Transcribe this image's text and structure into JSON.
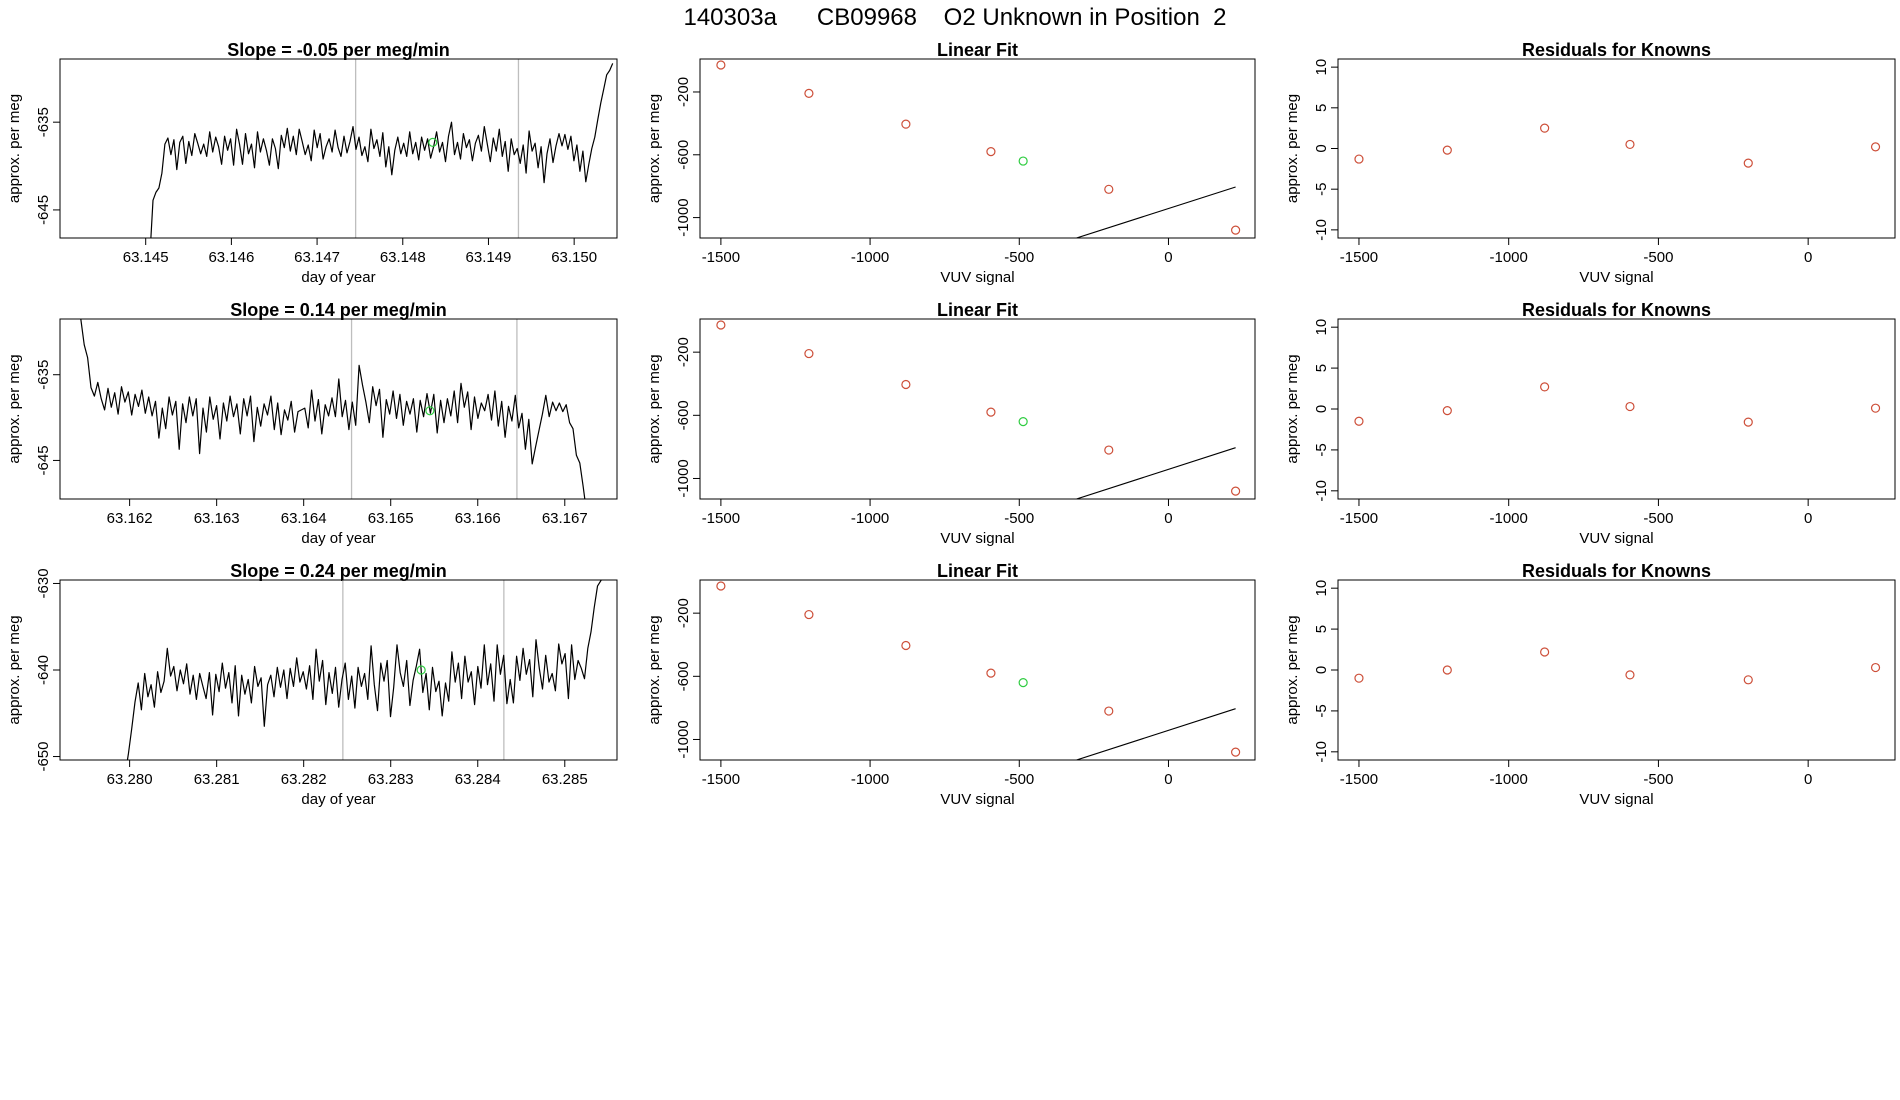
{
  "super_title": "140303a      CB09968    O2 Unknown in Position  2",
  "colors": {
    "trace": "#000000",
    "known": "#cd4f39",
    "unknown": "#2ecc40",
    "vline": "#bebebe",
    "fit": "#000000"
  },
  "chart_data": [
    {
      "type": "line",
      "row": 0,
      "title": "Slope =  -0.05  per meg/min",
      "xlabel": "day of year",
      "ylabel": "approx. per meg",
      "xlim": [
        63.144,
        63.1505
      ],
      "ylim": [
        -648.2,
        -627.8
      ],
      "xticks": [
        63.145,
        63.146,
        63.147,
        63.148,
        63.149,
        63.15
      ],
      "xtick_labels": [
        "63.145",
        "63.146",
        "63.147",
        "63.148",
        "63.149",
        "63.150"
      ],
      "yticks": [
        -645,
        -635
      ],
      "ytick_labels": [
        "-645",
        "-635"
      ],
      "vlines": [
        63.14745,
        63.14935
      ],
      "series_start": 63.14505,
      "series_end": 63.15045,
      "trace": [
        -650,
        -643.9,
        -643,
        -642.5,
        -640.8,
        -637.5,
        -636.8,
        -638.7,
        -637,
        -640.4,
        -637.3,
        -636.6,
        -639.7,
        -637.2,
        -638.8,
        -636.3,
        -637.4,
        -638.6,
        -637.5,
        -638.9,
        -636.1,
        -638.4,
        -636.7,
        -637.8,
        -639.8,
        -636.6,
        -638.2,
        -636.9,
        -639.9,
        -635.8,
        -637.5,
        -639.8,
        -636.3,
        -638.6,
        -637.5,
        -640.2,
        -636.1,
        -638.4,
        -636.9,
        -638.2,
        -639.9,
        -636.9,
        -638,
        -640.3,
        -636.5,
        -637.9,
        -635.7,
        -638.3,
        -636.6,
        -638.7,
        -635.8,
        -637.2,
        -638.7,
        -637.6,
        -639.4,
        -635.9,
        -637.9,
        -636.3,
        -639.2,
        -637.8,
        -636.9,
        -638.4,
        -635.9,
        -637.9,
        -638.9,
        -636.6,
        -638.5,
        -637.2,
        -635.5,
        -638.1,
        -636.7,
        -638.8,
        -637.8,
        -639.5,
        -635.8,
        -638,
        -637,
        -638.9,
        -636.2,
        -640.1,
        -637.8,
        -641,
        -638.2,
        -636.7,
        -638.6,
        -637.4,
        -638.9,
        -636.1,
        -638.6,
        -637.3,
        -639.3,
        -636.7,
        -638.2,
        -636.9,
        -639.1,
        -637.8,
        -636.1,
        -638.4,
        -637.3,
        -639.5,
        -636.6,
        -635,
        -638.7,
        -637.3,
        -639.2,
        -636.3,
        -637.9,
        -637,
        -639.4,
        -637.4,
        -636.5,
        -638.3,
        -635.5,
        -637.5,
        -639.5,
        -636.8,
        -638.3,
        -635.8,
        -638.9,
        -637.2,
        -640.6,
        -636.9,
        -638.7,
        -638,
        -639.7,
        -637.6,
        -640.8,
        -636,
        -638.3,
        -637.4,
        -640.2,
        -637.8,
        -641.9,
        -638.6,
        -636.9,
        -639.6,
        -637.7,
        -636.3,
        -637.7,
        -636.4,
        -638.1,
        -636.6,
        -639.4,
        -637.6,
        -640.6,
        -638.3,
        -641.8,
        -639.8,
        -638,
        -636.7,
        -634.7,
        -632.8,
        -631.2,
        -629.6,
        -629.1,
        -628.3
      ],
      "unknown_point": {
        "x": 63.14835,
        "y": -637.3
      }
    },
    {
      "type": "scatter",
      "row": 0,
      "title": "Linear Fit",
      "xlabel": "VUV signal",
      "ylabel": "approx. per meg",
      "xlim": [
        -1570,
        290
      ],
      "ylim": [
        -1130,
        10
      ],
      "xticks": [
        -1500,
        -1000,
        -500,
        0
      ],
      "xtick_labels": [
        "-1500",
        "-1000",
        "-500",
        "0"
      ],
      "yticks": [
        -1000,
        -600,
        -200
      ],
      "ytick_labels": [
        "-1000",
        "-600",
        "-200"
      ],
      "fit_line": {
        "slope": 0.6095,
        "intercept": -942.3,
        "x0": -1500,
        "x1": 225
      },
      "knowns": [
        {
          "x": -1500,
          "y": -28
        },
        {
          "x": -1205,
          "y": -209
        },
        {
          "x": -880,
          "y": -405
        },
        {
          "x": -595,
          "y": -580
        },
        {
          "x": -200,
          "y": -820
        },
        {
          "x": 225,
          "y": -1080
        }
      ],
      "unknown": {
        "x": -487,
        "y": -640
      }
    },
    {
      "type": "scatter",
      "row": 0,
      "title": "Residuals for Knowns",
      "xlabel": "VUV signal",
      "ylabel": "approx. per meg",
      "xlim": [
        -1570,
        290
      ],
      "ylim": [
        -11,
        11
      ],
      "xticks": [
        -1500,
        -1000,
        -500,
        0
      ],
      "xtick_labels": [
        "-1500",
        "-1000",
        "-500",
        "0"
      ],
      "yticks": [
        -10,
        -5,
        0,
        5,
        10
      ],
      "ytick_labels": [
        "-10",
        "-5",
        "0",
        "5",
        "10"
      ],
      "points": [
        {
          "x": -1500,
          "y": -1.3
        },
        {
          "x": -1205,
          "y": -0.2
        },
        {
          "x": -880,
          "y": 2.5
        },
        {
          "x": -595,
          "y": 0.5
        },
        {
          "x": -200,
          "y": -1.8
        },
        {
          "x": 225,
          "y": 0.2
        }
      ]
    },
    {
      "type": "line",
      "row": 1,
      "title": "Slope =  0.14  per meg/min",
      "xlabel": "day of year",
      "ylabel": "approx. per meg",
      "xlim": [
        63.1612,
        63.1676
      ],
      "ylim": [
        -649.5,
        -628.5
      ],
      "xticks": [
        63.162,
        63.163,
        63.164,
        63.165,
        63.166,
        63.167
      ],
      "xtick_labels": [
        "63.162",
        "63.163",
        "63.164",
        "63.165",
        "63.166",
        "63.167"
      ],
      "yticks": [
        -645,
        -635
      ],
      "ytick_labels": [
        "-645",
        "-635"
      ],
      "vlines": [
        63.16455,
        63.16645
      ],
      "series_start": 63.1614,
      "series_end": 63.16725,
      "trace": [
        -626,
        -628.5,
        -631.5,
        -633,
        -636.5,
        -637.5,
        -635.9,
        -637.8,
        -639.1,
        -636.6,
        -638.8,
        -637.1,
        -639.6,
        -636.4,
        -638.2,
        -637,
        -639.7,
        -637.3,
        -638.7,
        -636.8,
        -639.5,
        -637.6,
        -639.8,
        -638.1,
        -642.4,
        -638.9,
        -641.3,
        -637.6,
        -639.7,
        -638.1,
        -643.7,
        -638.4,
        -640.6,
        -637.6,
        -639.8,
        -637.8,
        -644.2,
        -638.9,
        -641.7,
        -637.6,
        -640.2,
        -638.6,
        -642.5,
        -638.3,
        -640.4,
        -637.5,
        -639.9,
        -638.4,
        -641.9,
        -637.8,
        -639.8,
        -637.5,
        -642.8,
        -638.8,
        -641,
        -638.4,
        -639.7,
        -637.5,
        -641.4,
        -638.3,
        -642,
        -639.1,
        -640.3,
        -638.1,
        -641.7,
        -639.3,
        -639.1,
        -638.9,
        -641.2,
        -636.8,
        -640.4,
        -637.9,
        -641.9,
        -638.5,
        -639.8,
        -637.7,
        -639.9,
        -635.5,
        -639.9,
        -638,
        -641.4,
        -638.2,
        -640.9,
        -633.9,
        -636.2,
        -638.2,
        -640.6,
        -636.4,
        -638.6,
        -636.7,
        -642.3,
        -637.9,
        -639.6,
        -636.9,
        -640.1,
        -637.3,
        -640.9,
        -638.1,
        -639.6,
        -637.8,
        -641.7,
        -638,
        -639.9,
        -637.2,
        -639.5,
        -637.3,
        -641.8,
        -638,
        -640.6,
        -637.8,
        -639.8,
        -636.9,
        -640.6,
        -636,
        -638.8,
        -637,
        -641.4,
        -637.6,
        -640.1,
        -638.3,
        -639.2,
        -637.3,
        -640.3,
        -636.9,
        -641,
        -638.1,
        -642.3,
        -638.7,
        -640.4,
        -637.4,
        -641.2,
        -639.5,
        -643.7,
        -640.2,
        -645.4,
        -643.4,
        -641.5,
        -639.6,
        -637.4,
        -639.9,
        -638.2,
        -639.2,
        -638.3,
        -639.3,
        -638.5,
        -640.6,
        -641.3,
        -644.4,
        -645.3,
        -648,
        -651
      ],
      "unknown_point": {
        "x": 63.16545,
        "y": -639.2
      }
    },
    {
      "type": "scatter",
      "row": 1,
      "title": "Linear Fit",
      "xlabel": "VUV signal",
      "ylabel": "approx. per meg",
      "xlim": [
        -1570,
        290
      ],
      "ylim": [
        -1130,
        10
      ],
      "xticks": [
        -1500,
        -1000,
        -500,
        0
      ],
      "xtick_labels": [
        "-1500",
        "-1000",
        "-500",
        "0"
      ],
      "yticks": [
        -1000,
        -600,
        -200
      ],
      "ytick_labels": [
        "-1000",
        "-600",
        "-200"
      ],
      "fit_line": {
        "slope": 0.6095,
        "intercept": -942.3,
        "x0": -1500,
        "x1": 225
      },
      "knowns": [
        {
          "x": -1500,
          "y": -28
        },
        {
          "x": -1205,
          "y": -209
        },
        {
          "x": -880,
          "y": -405
        },
        {
          "x": -595,
          "y": -580
        },
        {
          "x": -200,
          "y": -820
        },
        {
          "x": 225,
          "y": -1080
        }
      ],
      "unknown": {
        "x": -487,
        "y": -640
      }
    },
    {
      "type": "scatter",
      "row": 1,
      "title": "Residuals for Knowns",
      "xlabel": "VUV signal",
      "ylabel": "approx. per meg",
      "xlim": [
        -1570,
        290
      ],
      "ylim": [
        -11,
        11
      ],
      "xticks": [
        -1500,
        -1000,
        -500,
        0
      ],
      "xtick_labels": [
        "-1500",
        "-1000",
        "-500",
        "0"
      ],
      "yticks": [
        -10,
        -5,
        0,
        5,
        10
      ],
      "ytick_labels": [
        "-10",
        "-5",
        "0",
        "5",
        "10"
      ],
      "points": [
        {
          "x": -1500,
          "y": -1.5
        },
        {
          "x": -1205,
          "y": -0.2
        },
        {
          "x": -880,
          "y": 2.7
        },
        {
          "x": -595,
          "y": 0.3
        },
        {
          "x": -200,
          "y": -1.6
        },
        {
          "x": 225,
          "y": 0.1
        }
      ]
    },
    {
      "type": "line",
      "row": 2,
      "title": "Slope =  0.24  per meg/min",
      "xlabel": "day of year",
      "ylabel": "approx. per meg",
      "xlim": [
        63.2792,
        63.2856
      ],
      "ylim": [
        -650.4,
        -629.6
      ],
      "xticks": [
        63.28,
        63.281,
        63.282,
        63.283,
        63.284,
        63.285
      ],
      "xtick_labels": [
        "63.280",
        "63.281",
        "63.282",
        "63.283",
        "63.284",
        "63.285"
      ],
      "yticks": [
        -650,
        -640,
        -630
      ],
      "ytick_labels": [
        "-650",
        "-640",
        "-630"
      ],
      "vlines": [
        63.28245,
        63.2843
      ],
      "series_start": 63.27995,
      "series_end": 63.28545,
      "trace": [
        -652,
        -649.6,
        -646.8,
        -643.7,
        -641.5,
        -644.6,
        -640.4,
        -643.1,
        -641.7,
        -644.3,
        -640.2,
        -642.6,
        -641.3,
        -637.5,
        -640.7,
        -639.6,
        -642.4,
        -640,
        -641.6,
        -639.3,
        -642.8,
        -640.6,
        -643.4,
        -640.4,
        -641.9,
        -643.3,
        -640.3,
        -645.2,
        -640.5,
        -642.5,
        -639.2,
        -642.1,
        -640.3,
        -643.8,
        -639.5,
        -645.3,
        -640.6,
        -642.8,
        -641.1,
        -643.8,
        -639.6,
        -641.9,
        -640.9,
        -646.5,
        -641.7,
        -640.6,
        -643.1,
        -639.7,
        -642,
        -640,
        -643.3,
        -639.8,
        -641.9,
        -638.6,
        -641.4,
        -640.2,
        -642.2,
        -639.5,
        -643.4,
        -637.6,
        -641.3,
        -638.9,
        -644,
        -640.3,
        -642.7,
        -639.7,
        -644.3,
        -641.1,
        -639.2,
        -643.4,
        -640.7,
        -644.4,
        -639.7,
        -641.9,
        -640.4,
        -643.4,
        -637.2,
        -641.7,
        -644.7,
        -639.2,
        -641.3,
        -638.9,
        -645.4,
        -642,
        -637.1,
        -640.3,
        -641.9,
        -638.9,
        -644.1,
        -641.2,
        -639.5,
        -637.6,
        -642.6,
        -640.4,
        -644.6,
        -639.7,
        -642.5,
        -641.3,
        -645.3,
        -641.5,
        -643.6,
        -637.9,
        -641.4,
        -639.2,
        -643.3,
        -638.4,
        -641.4,
        -640.2,
        -644,
        -639.6,
        -642.1,
        -637.1,
        -641.7,
        -639.3,
        -643.6,
        -637.1,
        -640.5,
        -638.3,
        -643.9,
        -641.1,
        -643.8,
        -638.4,
        -641.2,
        -637.5,
        -640.5,
        -638.8,
        -643.1,
        -636.5,
        -639.8,
        -642.2,
        -638.3,
        -641.4,
        -640.4,
        -642.4,
        -637,
        -639.3,
        -638.1,
        -643.3,
        -637.1,
        -641.1,
        -638.9,
        -639.8,
        -641,
        -637.5,
        -635.6,
        -632.8,
        -630.3,
        -629.7,
        -629.2
      ],
      "unknown_point": {
        "x": 63.28335,
        "y": -640
      }
    },
    {
      "type": "scatter",
      "row": 2,
      "title": "Linear Fit",
      "xlabel": "VUV signal",
      "ylabel": "approx. per meg",
      "xlim": [
        -1570,
        290
      ],
      "ylim": [
        -1130,
        10
      ],
      "xticks": [
        -1500,
        -1000,
        -500,
        0
      ],
      "xtick_labels": [
        "-1500",
        "-1000",
        "-500",
        "0"
      ],
      "yticks": [
        -1000,
        -600,
        -200
      ],
      "ytick_labels": [
        "-1000",
        "-600",
        "-200"
      ],
      "fit_line": {
        "slope": 0.6095,
        "intercept": -942.3,
        "x0": -1500,
        "x1": 225
      },
      "knowns": [
        {
          "x": -1500,
          "y": -28
        },
        {
          "x": -1205,
          "y": -209
        },
        {
          "x": -880,
          "y": -405
        },
        {
          "x": -595,
          "y": -580
        },
        {
          "x": -200,
          "y": -820
        },
        {
          "x": 225,
          "y": -1080
        }
      ],
      "unknown": {
        "x": -487,
        "y": -640
      }
    },
    {
      "type": "scatter",
      "row": 2,
      "title": "Residuals for Knowns",
      "xlabel": "VUV signal",
      "ylabel": "approx. per meg",
      "xlim": [
        -1570,
        290
      ],
      "ylim": [
        -11,
        11
      ],
      "xticks": [
        -1500,
        -1000,
        -500,
        0
      ],
      "xtick_labels": [
        "-1500",
        "-1000",
        "-500",
        "0"
      ],
      "yticks": [
        -10,
        -5,
        0,
        5,
        10
      ],
      "ytick_labels": [
        "-10",
        "-5",
        "0",
        "5",
        "10"
      ],
      "points": [
        {
          "x": -1500,
          "y": -1
        },
        {
          "x": -1205,
          "y": 0
        },
        {
          "x": -880,
          "y": 2.2
        },
        {
          "x": -595,
          "y": -0.6
        },
        {
          "x": -200,
          "y": -1.2
        },
        {
          "x": 225,
          "y": 0.3
        }
      ]
    }
  ]
}
